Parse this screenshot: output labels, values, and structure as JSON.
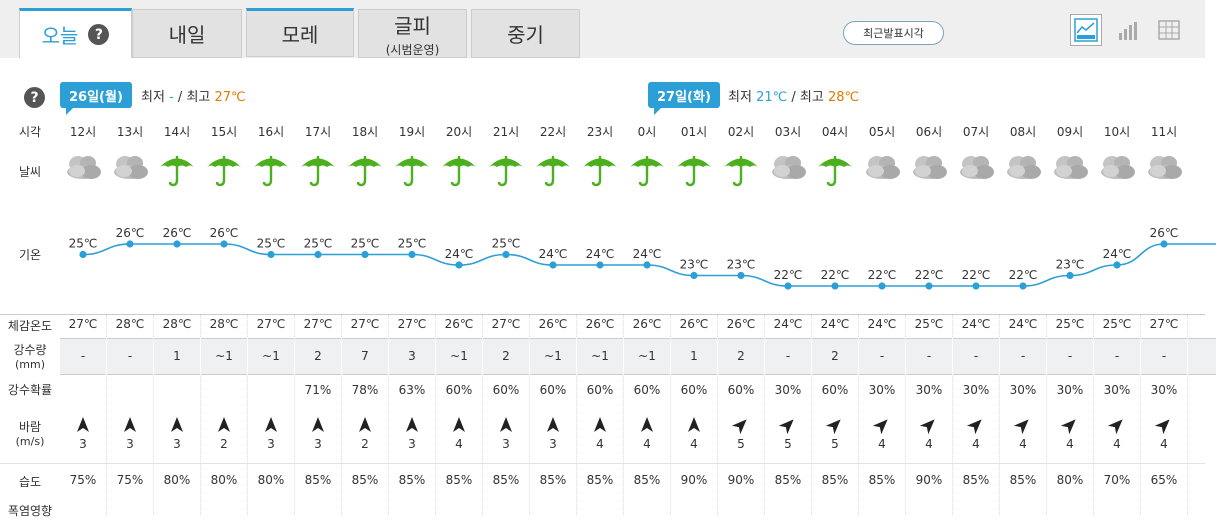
{
  "tabs": [
    {
      "label": "오늘",
      "sub": ""
    },
    {
      "label": "내일",
      "sub": ""
    },
    {
      "label": "모레",
      "sub": ""
    },
    {
      "label": "글피",
      "sub": "(시범운영)"
    },
    {
      "label": "중기",
      "sub": ""
    }
  ],
  "help_label": "?",
  "recent_button": "최근발표시각",
  "days": [
    {
      "tag": "26일(월)",
      "min_label": "최저",
      "min": "-",
      "max_label": "최고",
      "max": "27℃"
    },
    {
      "tag": "27일(화)",
      "min_label": "최저",
      "min": "21℃",
      "max_label": "최고",
      "max": "28℃"
    }
  ],
  "separator": "/",
  "row_labels": {
    "time": "시각",
    "weather": "날씨",
    "temp": "기온",
    "feels": "체감온도",
    "precip": "강수량",
    "precip_unit": "(mm)",
    "prob": "강수확률",
    "wind": "바람",
    "wind_unit": "(m/s)",
    "humidity": "습도",
    "heat": "폭염영향"
  },
  "hours": [
    {
      "time": "12시",
      "weather": "cloudy",
      "temp": 25,
      "temp_label": "25℃",
      "feels": "27℃",
      "precip": "-",
      "prob": "",
      "wind_dir": "north",
      "wind": "3",
      "humidity": "75%"
    },
    {
      "time": "13시",
      "weather": "cloudy",
      "temp": 26,
      "temp_label": "26℃",
      "feels": "28℃",
      "precip": "-",
      "prob": "",
      "wind_dir": "north",
      "wind": "3",
      "humidity": "75%"
    },
    {
      "time": "14시",
      "weather": "rain",
      "temp": 26,
      "temp_label": "26℃",
      "feels": "28℃",
      "precip": "1",
      "prob": "",
      "wind_dir": "north",
      "wind": "3",
      "humidity": "80%"
    },
    {
      "time": "15시",
      "weather": "rain",
      "temp": 26,
      "temp_label": "26℃",
      "feels": "28℃",
      "precip": "~1",
      "prob": "",
      "wind_dir": "north",
      "wind": "2",
      "humidity": "80%"
    },
    {
      "time": "16시",
      "weather": "rain",
      "temp": 25,
      "temp_label": "25℃",
      "feels": "27℃",
      "precip": "~1",
      "prob": "",
      "wind_dir": "north",
      "wind": "3",
      "humidity": "80%"
    },
    {
      "time": "17시",
      "weather": "rain",
      "temp": 25,
      "temp_label": "25℃",
      "feels": "27℃",
      "precip": "2",
      "prob": "71%",
      "wind_dir": "north",
      "wind": "3",
      "humidity": "85%"
    },
    {
      "time": "18시",
      "weather": "rain",
      "temp": 25,
      "temp_label": "25℃",
      "feels": "27℃",
      "precip": "7",
      "prob": "78%",
      "wind_dir": "north",
      "wind": "2",
      "humidity": "85%"
    },
    {
      "time": "19시",
      "weather": "rain",
      "temp": 25,
      "temp_label": "25℃",
      "feels": "27℃",
      "precip": "3",
      "prob": "63%",
      "wind_dir": "north",
      "wind": "3",
      "humidity": "85%"
    },
    {
      "time": "20시",
      "weather": "rain",
      "temp": 24,
      "temp_label": "24℃",
      "feels": "26℃",
      "precip": "~1",
      "prob": "60%",
      "wind_dir": "north",
      "wind": "4",
      "humidity": "85%"
    },
    {
      "time": "21시",
      "weather": "rain",
      "temp": 25,
      "temp_label": "25℃",
      "feels": "27℃",
      "precip": "2",
      "prob": "60%",
      "wind_dir": "north",
      "wind": "3",
      "humidity": "85%"
    },
    {
      "time": "22시",
      "weather": "rain",
      "temp": 24,
      "temp_label": "24℃",
      "feels": "26℃",
      "precip": "~1",
      "prob": "60%",
      "wind_dir": "north",
      "wind": "3",
      "humidity": "85%"
    },
    {
      "time": "23시",
      "weather": "rain",
      "temp": 24,
      "temp_label": "24℃",
      "feels": "26℃",
      "precip": "~1",
      "prob": "60%",
      "wind_dir": "north",
      "wind": "4",
      "humidity": "85%"
    },
    {
      "time": "0시",
      "weather": "rain",
      "temp": 24,
      "temp_label": "24℃",
      "feels": "26℃",
      "precip": "~1",
      "prob": "60%",
      "wind_dir": "north",
      "wind": "4",
      "humidity": "85%"
    },
    {
      "time": "01시",
      "weather": "rain",
      "temp": 23,
      "temp_label": "23℃",
      "feels": "26℃",
      "precip": "1",
      "prob": "60%",
      "wind_dir": "north",
      "wind": "4",
      "humidity": "90%"
    },
    {
      "time": "02시",
      "weather": "rain",
      "temp": 23,
      "temp_label": "23℃",
      "feels": "26℃",
      "precip": "2",
      "prob": "60%",
      "wind_dir": "northeast",
      "wind": "5",
      "humidity": "90%"
    },
    {
      "time": "03시",
      "weather": "cloudy",
      "temp": 22,
      "temp_label": "22℃",
      "feels": "24℃",
      "precip": "-",
      "prob": "30%",
      "wind_dir": "northeast",
      "wind": "5",
      "humidity": "85%"
    },
    {
      "time": "04시",
      "weather": "rain",
      "temp": 22,
      "temp_label": "22℃",
      "feels": "24℃",
      "precip": "2",
      "prob": "60%",
      "wind_dir": "northeast",
      "wind": "5",
      "humidity": "85%"
    },
    {
      "time": "05시",
      "weather": "cloudy",
      "temp": 22,
      "temp_label": "22℃",
      "feels": "24℃",
      "precip": "-",
      "prob": "30%",
      "wind_dir": "northeast",
      "wind": "4",
      "humidity": "85%"
    },
    {
      "time": "06시",
      "weather": "cloudy",
      "temp": 22,
      "temp_label": "22℃",
      "feels": "25℃",
      "precip": "-",
      "prob": "30%",
      "wind_dir": "northeast",
      "wind": "4",
      "humidity": "90%"
    },
    {
      "time": "07시",
      "weather": "cloudy",
      "temp": 22,
      "temp_label": "22℃",
      "feels": "24℃",
      "precip": "-",
      "prob": "30%",
      "wind_dir": "northeast",
      "wind": "4",
      "humidity": "85%"
    },
    {
      "time": "08시",
      "weather": "cloudy",
      "temp": 22,
      "temp_label": "22℃",
      "feels": "24℃",
      "precip": "-",
      "prob": "30%",
      "wind_dir": "northeast",
      "wind": "4",
      "humidity": "85%"
    },
    {
      "time": "09시",
      "weather": "cloudy",
      "temp": 23,
      "temp_label": "23℃",
      "feels": "25℃",
      "precip": "-",
      "prob": "30%",
      "wind_dir": "northeast",
      "wind": "4",
      "humidity": "80%"
    },
    {
      "time": "10시",
      "weather": "cloudy",
      "temp": 24,
      "temp_label": "24℃",
      "feels": "25℃",
      "precip": "-",
      "prob": "30%",
      "wind_dir": "northeast",
      "wind": "4",
      "humidity": "70%"
    },
    {
      "time": "11시",
      "weather": "cloudy",
      "temp": 26,
      "temp_label": "26℃",
      "feels": "27℃",
      "precip": "-",
      "prob": "30%",
      "wind_dir": "northeast",
      "wind": "4",
      "humidity": "65%"
    }
  ],
  "colors": {
    "accent": "#2b9fd6",
    "max": "#e07b00",
    "umbrella": "#4caf1e",
    "cloud": "#b0b0b0"
  }
}
